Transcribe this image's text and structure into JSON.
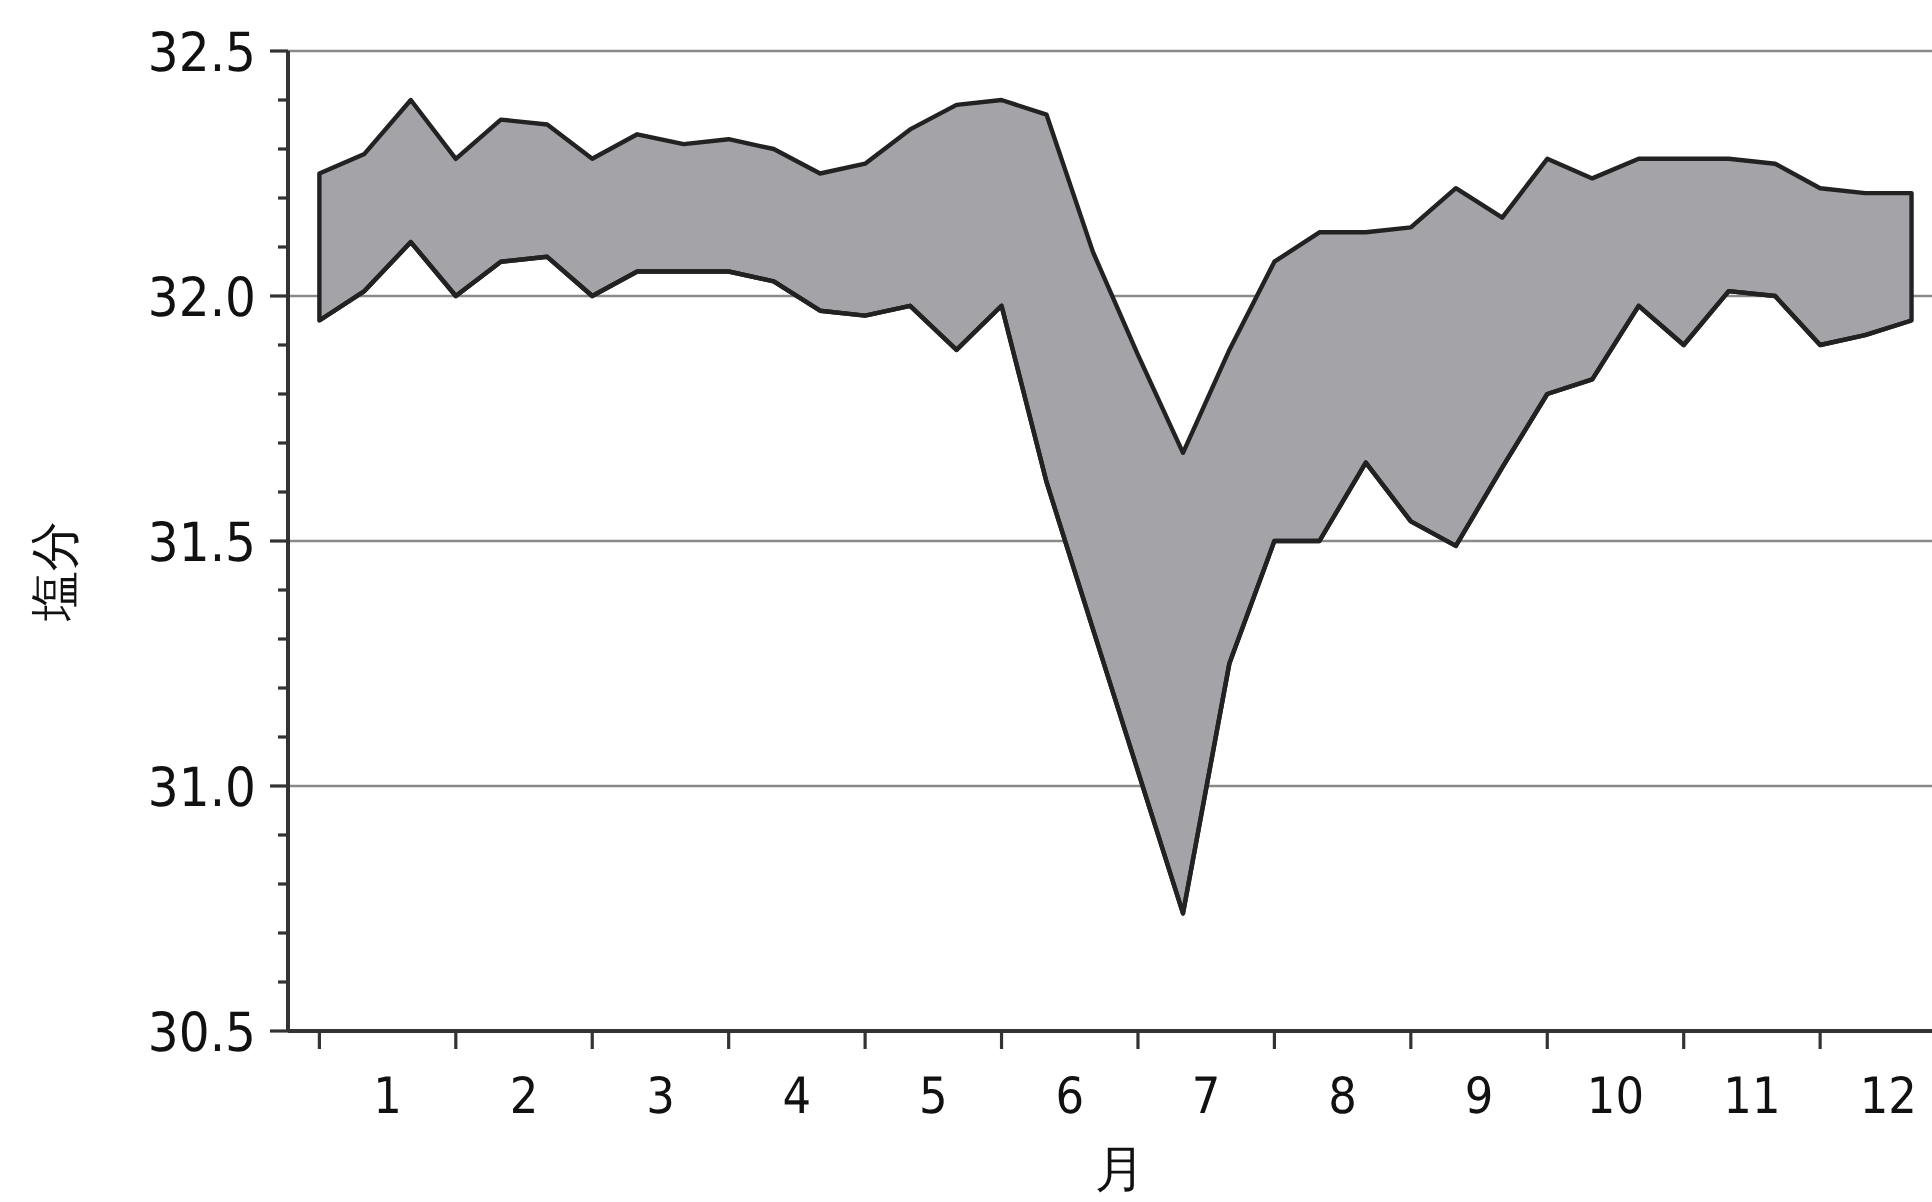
{
  "chart_data": {
    "type": "area",
    "xlabel": "月",
    "ylabel": "塩分",
    "x": [
      0.5,
      0.83,
      1.17,
      1.5,
      1.83,
      2.17,
      2.5,
      2.83,
      3.17,
      3.5,
      3.83,
      4.17,
      4.5,
      4.83,
      5.17,
      5.5,
      5.83,
      6.17,
      6.5,
      6.83,
      7.17,
      7.5,
      7.83,
      8.17,
      8.5,
      8.83,
      9.17,
      9.5,
      9.83,
      10.17,
      10.5,
      10.83,
      11.17,
      11.5,
      11.83,
      12.17
    ],
    "series": [
      {
        "color": "#a3a3a8",
        "values": [
          32.25,
          32.29,
          32.4,
          32.28,
          32.36,
          32.35,
          32.28,
          32.33,
          32.31,
          32.32,
          32.3,
          32.25,
          32.27,
          32.34,
          32.39,
          32.4,
          32.37,
          32.09,
          31.88,
          31.68,
          31.89,
          32.07,
          32.13,
          32.13,
          32.14,
          32.22,
          32.16,
          32.28,
          32.24,
          32.28,
          32.28,
          32.28,
          32.27,
          32.22,
          32.21,
          32.21
        ]
      },
      {
        "type": "line",
        "color": "#222222",
        "values": [
          31.95,
          32.01,
          32.11,
          32.0,
          32.07,
          32.08,
          32.0,
          32.05,
          32.05,
          32.05,
          32.03,
          31.97,
          31.96,
          31.98,
          31.89,
          31.98,
          31.62,
          31.32,
          31.03,
          30.74,
          31.25,
          31.5,
          31.5,
          31.66,
          31.54,
          31.49,
          31.65,
          31.8,
          31.83,
          31.98,
          31.9,
          32.01,
          32.0,
          31.9,
          31.92,
          31.95
        ]
      }
    ],
    "xlim": [
      0.27,
      12.32
    ],
    "xticks": [
      {
        "value": 0.5,
        "label": null
      },
      {
        "value": 1,
        "label": "1"
      },
      {
        "value": 1.5,
        "label": null
      },
      {
        "value": 2,
        "label": "2"
      },
      {
        "value": 2.5,
        "label": null
      },
      {
        "value": 3,
        "label": "3"
      },
      {
        "value": 3.5,
        "label": null
      },
      {
        "value": 4,
        "label": "4"
      },
      {
        "value": 4.5,
        "label": null
      },
      {
        "value": 5,
        "label": "5"
      },
      {
        "value": 5.5,
        "label": null
      },
      {
        "value": 6,
        "label": "6"
      },
      {
        "value": 6.5,
        "label": null
      },
      {
        "value": 7,
        "label": "7"
      },
      {
        "value": 7.5,
        "label": null
      },
      {
        "value": 8,
        "label": "8"
      },
      {
        "value": 8.5,
        "label": null
      },
      {
        "value": 9,
        "label": "9"
      },
      {
        "value": 9.5,
        "label": null
      },
      {
        "value": 10,
        "label": "10"
      },
      {
        "value": 10.5,
        "label": null
      },
      {
        "value": 11,
        "label": "11"
      },
      {
        "value": 11.5,
        "label": null
      },
      {
        "value": 12,
        "label": "12"
      }
    ],
    "ylim": [
      30.5,
      32.5
    ],
    "yticks": [
      {
        "value": 30.5,
        "label": "30.5"
      },
      {
        "value": 30.6,
        "label": null
      },
      {
        "value": 30.7,
        "label": null
      },
      {
        "value": 30.8,
        "label": null
      },
      {
        "value": 30.9,
        "label": null
      },
      {
        "value": 31.0,
        "label": "31.0"
      },
      {
        "value": 31.1,
        "label": null
      },
      {
        "value": 31.2,
        "label": null
      },
      {
        "value": 31.3,
        "label": null
      },
      {
        "value": 31.4,
        "label": null
      },
      {
        "value": 31.5,
        "label": "31.5"
      },
      {
        "value": 31.6,
        "label": null
      },
      {
        "value": 31.7,
        "label": null
      },
      {
        "value": 31.8,
        "label": null
      },
      {
        "value": 31.9,
        "label": null
      },
      {
        "value": 32.0,
        "label": "32.0"
      },
      {
        "value": 32.1,
        "label": null
      },
      {
        "value": 32.2,
        "label": null
      },
      {
        "value": 32.3,
        "label": null
      },
      {
        "value": 32.4,
        "label": null
      },
      {
        "value": 32.5,
        "label": "32.5"
      }
    ],
    "grid": "y"
  }
}
